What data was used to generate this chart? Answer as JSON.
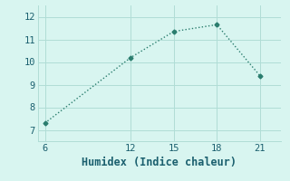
{
  "x": [
    6,
    12,
    15,
    18,
    21
  ],
  "y": [
    7.3,
    10.2,
    11.35,
    11.65,
    9.4
  ],
  "xlabel": "Humidex (Indice chaleur)",
  "xlim": [
    5.5,
    22.5
  ],
  "ylim": [
    6.5,
    12.5
  ],
  "xticks": [
    6,
    12,
    15,
    18,
    21
  ],
  "yticks": [
    7,
    8,
    9,
    10,
    11,
    12
  ],
  "background_color": "#d8f5f0",
  "line_color": "#2a7d6e",
  "grid_color": "#b0ddd6",
  "label_color": "#1a5f6e",
  "tick_color": "#1a5f6e",
  "xlabel_fontsize": 8.5,
  "tick_fontsize": 7.5,
  "line_width": 1.0,
  "marker": "D",
  "marker_size": 2.5
}
